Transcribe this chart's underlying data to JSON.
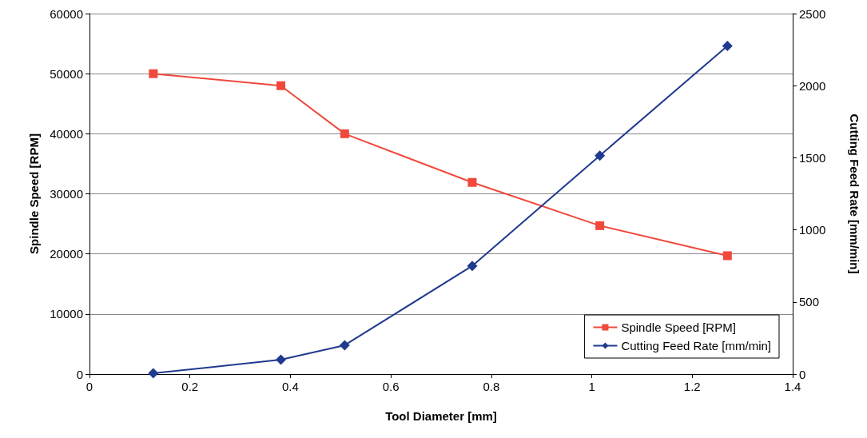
{
  "chart_data": {
    "type": "line",
    "xlabel": "Tool Diameter [mm]",
    "ylabel": "Spindle Speed [RPM]",
    "y2label": "Cutting Feed Rate [mm/min]",
    "x": [
      0.127,
      0.381,
      0.508,
      0.762,
      1.016,
      1.27
    ],
    "series": [
      {
        "name": "Spindle Speed [RPM]",
        "color": "#f0493c",
        "marker": "square",
        "values": [
          50000,
          48000,
          40000,
          31900,
          24700,
          19700
        ]
      },
      {
        "name": "Cutting Feed Rate [mm/min]",
        "color": "#1f3a8f",
        "marker": "diamond",
        "axis": "y2",
        "values": [
          5,
          100,
          200,
          750,
          1515,
          2275
        ]
      }
    ],
    "xlim": [
      0,
      1.4
    ],
    "xticks": [
      0,
      0.2,
      0.4,
      0.6,
      0.8,
      1,
      1.2,
      1.4
    ],
    "ylim": [
      0,
      60000
    ],
    "yticks": [
      0,
      10000,
      20000,
      30000,
      40000,
      50000,
      60000
    ],
    "y2lim": [
      0,
      2500
    ],
    "y2ticks": [
      0,
      500,
      1000,
      1500,
      2000,
      2500
    ],
    "grid": "y",
    "legend": "bottom right",
    "line_style": "solid"
  }
}
